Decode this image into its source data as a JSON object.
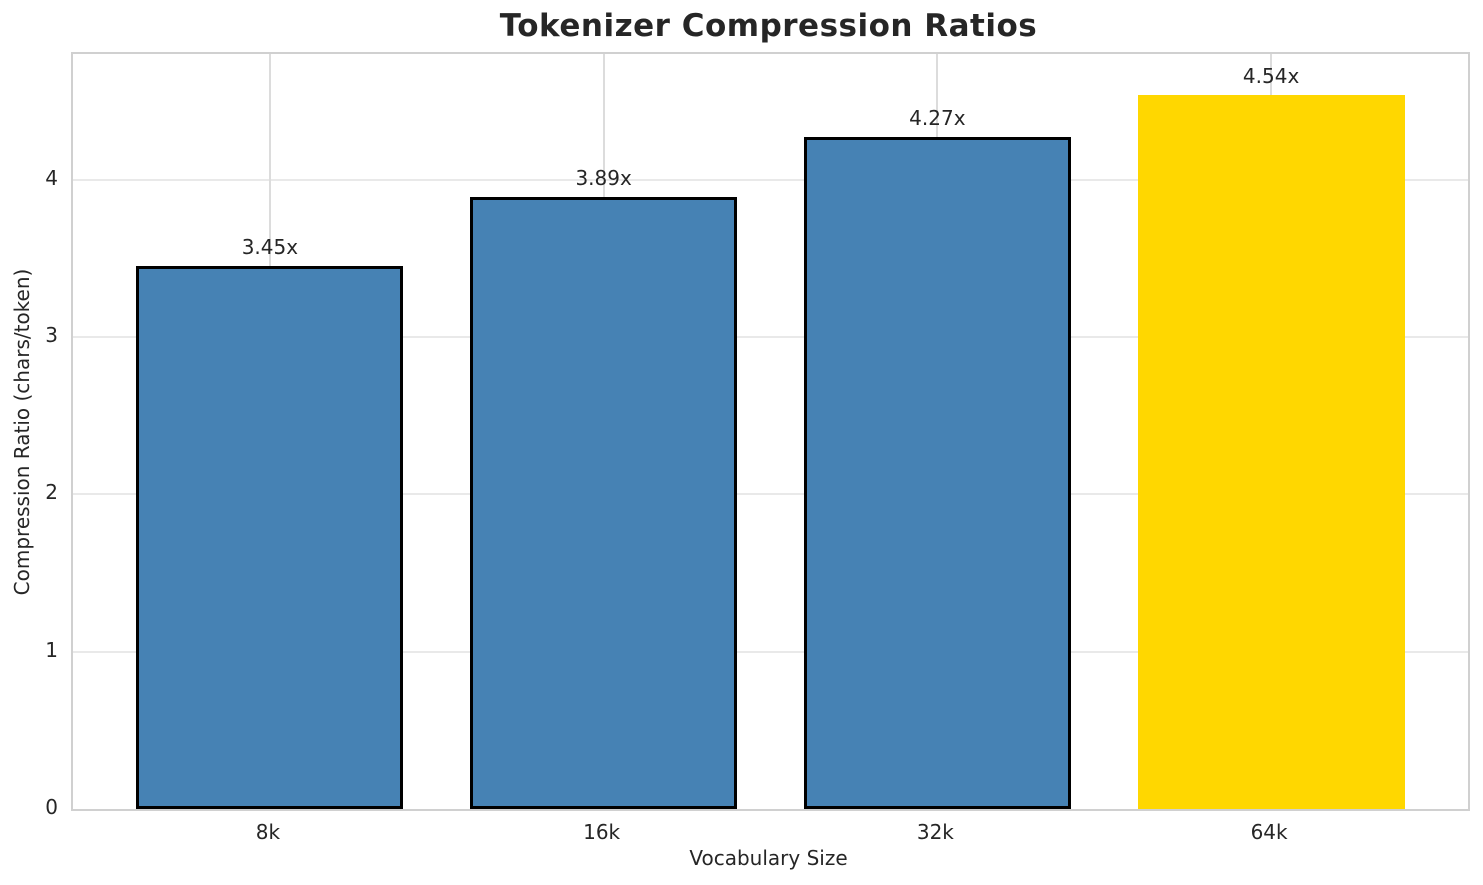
{
  "chart_data": {
    "type": "bar",
    "title": "Tokenizer Compression Ratios",
    "xlabel": "Vocabulary Size",
    "ylabel": "Compression Ratio (chars/token)",
    "categories": [
      "8k",
      "16k",
      "32k",
      "64k"
    ],
    "values": [
      3.45,
      3.89,
      4.27,
      4.54
    ],
    "value_labels": [
      "3.45x",
      "3.89x",
      "4.27x",
      "4.54x"
    ],
    "bar_colors": [
      "#4682b4",
      "#4682b4",
      "#4682b4",
      "#ffd700"
    ],
    "bar_edge_colors": [
      "#000000",
      "#000000",
      "#000000",
      "none"
    ],
    "highlight_index": 3,
    "highlight_color": "#ffd700",
    "base_color": "#4682b4",
    "yticks": [
      0,
      1,
      2,
      3,
      4
    ],
    "ylim": [
      0,
      4.8
    ],
    "xlim": [
      -0.59,
      3.59
    ],
    "bar_width": 0.8,
    "grid": true,
    "legend": false,
    "grid_color_h": "#e9e9e9",
    "grid_color_v": "#dcdcdc",
    "spine_color": "#d0d0d0",
    "text_color": "#262626",
    "background": "#ffffff"
  }
}
